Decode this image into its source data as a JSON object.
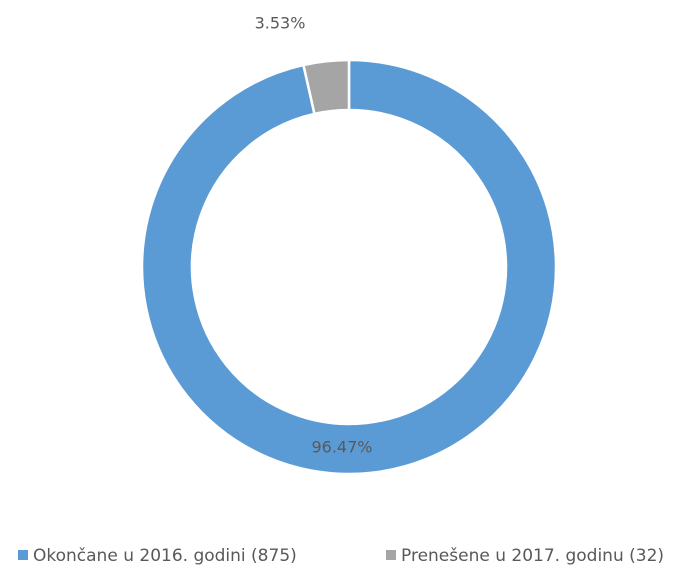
{
  "chart_data": {
    "type": "donut",
    "categories": [
      "Okončane u 2016. godini (875)",
      "Prenešene u 2017. godinu (32)"
    ],
    "values": [
      96.47,
      3.53
    ],
    "value_labels": [
      "96.47%",
      "3.53%"
    ],
    "colors": [
      "#5b9bd5",
      "#a5a5a5"
    ],
    "legend": "bottom"
  }
}
